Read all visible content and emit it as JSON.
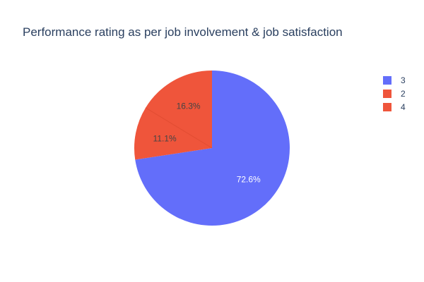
{
  "chart_data": {
    "type": "pie",
    "title": "Performance rating as per job involvement & job satisfaction",
    "slices": [
      {
        "label": "3",
        "value": 72.6,
        "text": "72.6%",
        "color": "#636efa",
        "text_color": "#ffffff"
      },
      {
        "label": "2",
        "value": 11.1,
        "text": "11.1%",
        "color": "#ef553b",
        "text_color": "#444444"
      },
      {
        "label": "4",
        "value": 16.3,
        "text": "16.3%",
        "color": "#ef553b",
        "text_color": "#444444"
      }
    ],
    "legend": {
      "placement": "top-right",
      "entries": [
        {
          "label": "3",
          "color": "#636efa"
        },
        {
          "label": "2",
          "color": "#ef553b"
        },
        {
          "label": "4",
          "color": "#ef553b"
        }
      ]
    }
  }
}
